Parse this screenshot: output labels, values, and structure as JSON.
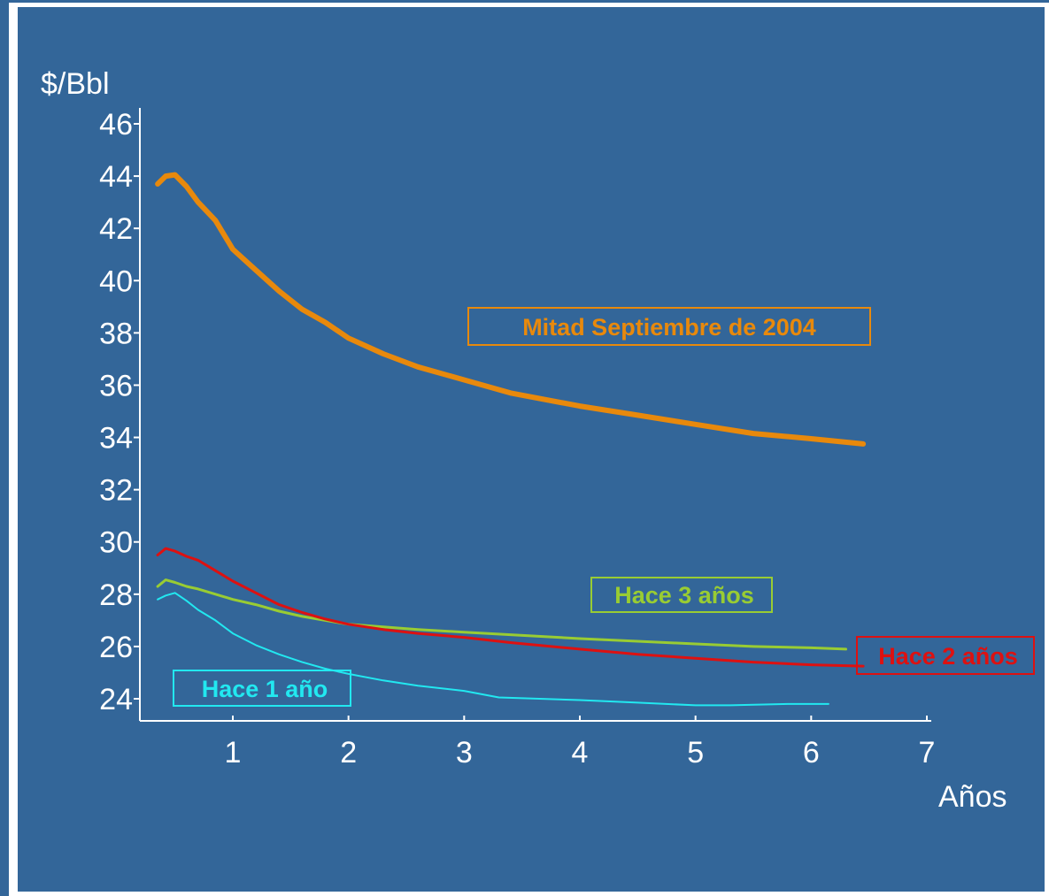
{
  "chart_data": {
    "type": "line",
    "ylabel": "$/Bbl",
    "xlabel": "Años",
    "xlim": [
      0.3,
      7
    ],
    "ylim": [
      23,
      46.5
    ],
    "xticks": [
      "1",
      "2",
      "3",
      "4",
      "5",
      "6",
      "7"
    ],
    "yticks": [
      "24",
      "26",
      "28",
      "30",
      "32",
      "34",
      "36",
      "38",
      "40",
      "42",
      "44",
      "46"
    ],
    "grid": false,
    "series": [
      {
        "name": "Mitad Septiembre de 2004",
        "color": "#e8890c",
        "x": [
          0.35,
          0.42,
          0.5,
          0.6,
          0.7,
          0.85,
          1.0,
          1.2,
          1.4,
          1.6,
          1.8,
          2.0,
          2.3,
          2.6,
          3.0,
          3.4,
          4.0,
          4.5,
          5.0,
          5.5,
          6.0,
          6.45
        ],
        "values": [
          43.7,
          44.0,
          44.05,
          43.6,
          43.0,
          42.3,
          41.2,
          40.4,
          39.6,
          38.9,
          38.4,
          37.8,
          37.2,
          36.7,
          36.2,
          35.7,
          35.2,
          34.85,
          34.5,
          34.15,
          33.95,
          33.75
        ]
      },
      {
        "name": "Hace 3 años",
        "color": "#99cc33",
        "x": [
          0.35,
          0.42,
          0.5,
          0.6,
          0.7,
          0.85,
          1.0,
          1.2,
          1.4,
          1.6,
          1.8,
          2.0,
          2.3,
          2.6,
          3.0,
          3.4,
          4.0,
          4.5,
          5.0,
          5.5,
          6.0,
          6.3
        ],
        "values": [
          28.3,
          28.55,
          28.45,
          28.3,
          28.2,
          28.0,
          27.8,
          27.6,
          27.35,
          27.15,
          27.0,
          26.85,
          26.75,
          26.65,
          26.55,
          26.45,
          26.3,
          26.2,
          26.1,
          26.0,
          25.95,
          25.9
        ]
      },
      {
        "name": "Hace 2 años",
        "color": "#dd1111",
        "x": [
          0.35,
          0.42,
          0.5,
          0.6,
          0.7,
          0.85,
          1.0,
          1.2,
          1.4,
          1.6,
          1.8,
          2.0,
          2.3,
          2.6,
          3.0,
          3.4,
          4.0,
          4.5,
          5.0,
          5.5,
          6.0,
          6.45
        ],
        "values": [
          29.5,
          29.75,
          29.65,
          29.45,
          29.3,
          28.9,
          28.5,
          28.05,
          27.6,
          27.3,
          27.05,
          26.85,
          26.65,
          26.5,
          26.35,
          26.15,
          25.9,
          25.7,
          25.55,
          25.4,
          25.3,
          25.25
        ]
      },
      {
        "name": "Hace 1 año",
        "color": "#22e8f0",
        "x": [
          0.35,
          0.42,
          0.5,
          0.6,
          0.7,
          0.85,
          1.0,
          1.2,
          1.4,
          1.6,
          1.8,
          2.0,
          2.3,
          2.6,
          3.0,
          3.3,
          4.0,
          4.5,
          5.0,
          5.3,
          5.8,
          6.15
        ],
        "values": [
          27.8,
          27.95,
          28.05,
          27.75,
          27.4,
          27.0,
          26.5,
          26.05,
          25.7,
          25.4,
          25.15,
          24.95,
          24.7,
          24.5,
          24.3,
          24.05,
          23.95,
          23.85,
          23.75,
          23.75,
          23.8,
          23.8
        ]
      }
    ]
  },
  "labels": {
    "orange": "Mitad Septiembre de 2004",
    "green": "Hace 3 años",
    "red": "Hace 2 años",
    "cyan": "Hace 1 año"
  }
}
